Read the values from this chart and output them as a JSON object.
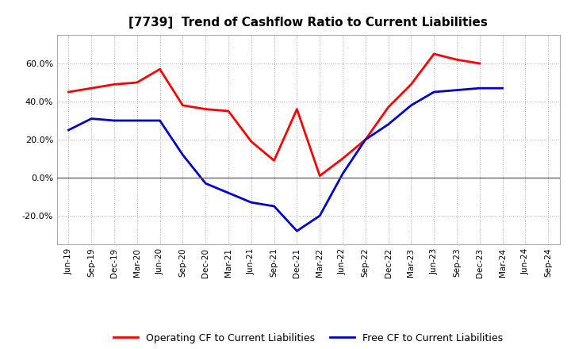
{
  "title": "[7739]  Trend of Cashflow Ratio to Current Liabilities",
  "x_labels": [
    "Jun-19",
    "Sep-19",
    "Dec-19",
    "Mar-20",
    "Jun-20",
    "Sep-20",
    "Dec-20",
    "Mar-21",
    "Jun-21",
    "Sep-21",
    "Dec-21",
    "Mar-22",
    "Jun-22",
    "Sep-22",
    "Dec-22",
    "Mar-23",
    "Jun-23",
    "Sep-23",
    "Dec-23",
    "Mar-24",
    "Jun-24",
    "Sep-24"
  ],
  "operating_cf": [
    0.45,
    0.47,
    0.49,
    0.5,
    0.57,
    0.38,
    0.36,
    0.35,
    0.19,
    0.09,
    0.36,
    0.01,
    0.1,
    0.2,
    0.37,
    0.49,
    0.65,
    0.62,
    0.6,
    null,
    null,
    null
  ],
  "free_cf": [
    0.25,
    0.31,
    0.3,
    0.3,
    0.3,
    0.12,
    -0.03,
    -0.08,
    -0.13,
    -0.15,
    -0.28,
    -0.2,
    0.02,
    0.2,
    0.28,
    0.38,
    0.45,
    0.46,
    0.47,
    0.47,
    null,
    null
  ],
  "ylim": [
    -0.35,
    0.75
  ],
  "yticks": [
    -0.2,
    0.0,
    0.2,
    0.4,
    0.6
  ],
  "operating_color": "#ff0000",
  "free_color": "#0000cc",
  "background_color": "#ffffff",
  "grid_color": "#aaaaaa",
  "legend_operating": "Operating CF to Current Liabilities",
  "legend_free": "Free CF to Current Liabilities"
}
